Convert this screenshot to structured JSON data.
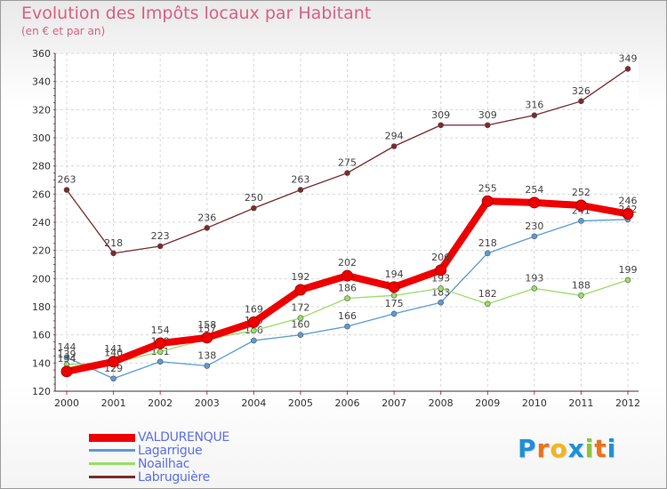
{
  "header": {
    "title": "Evolution des Impôts locaux par Habitant",
    "subtitle": "(en € et par an)"
  },
  "logo": {
    "letters": [
      "P",
      "r",
      "o",
      "x",
      "i",
      "t",
      "i"
    ],
    "colors": [
      "#1e90d8",
      "#e8731c",
      "#f2b51b",
      "#1e90d8",
      "#8cc63f",
      "#e8731c",
      "#1e90d8"
    ]
  },
  "chart_data": {
    "type": "line",
    "title": "Evolution des Impôts locaux par Habitant",
    "subtitle": "(en € et par an)",
    "xlabel": "",
    "ylabel": "",
    "x": [
      "2000",
      "2001",
      "2002",
      "2003",
      "2004",
      "2005",
      "2006",
      "2007",
      "2008",
      "2009",
      "2010",
      "2011",
      "2012"
    ],
    "ylim": [
      120,
      360
    ],
    "yticks": [
      120,
      140,
      160,
      180,
      200,
      220,
      240,
      260,
      280,
      300,
      320,
      340,
      360
    ],
    "grid": true,
    "legend_position": "bottom-left",
    "series": [
      {
        "name": "Labruguière",
        "color": "#7a2a2e",
        "values": [
          263,
          218,
          223,
          236,
          250,
          263,
          275,
          294,
          309,
          309,
          316,
          326,
          349
        ],
        "labels": [
          "263",
          "218",
          "223",
          "236",
          "250",
          "263",
          "275",
          "294",
          "309",
          "309",
          "316",
          "326",
          "349"
        ]
      },
      {
        "name": "Lagarrigue",
        "color": "#5b9bd5",
        "values": [
          144,
          129,
          141,
          138,
          156,
          160,
          166,
          175,
          183,
          218,
          230,
          241,
          242
        ],
        "labels": [
          "144",
          "129",
          "141",
          "138",
          "156",
          "160",
          "166",
          "175",
          "183",
          "218",
          "230",
          "241",
          "242"
        ]
      },
      {
        "name": "Noailhac",
        "color": "#99dd66",
        "values": [
          139,
          140,
          148,
          157,
          163,
          172,
          186,
          188,
          193,
          182,
          193,
          188,
          199
        ],
        "labels": [
          "139",
          "140",
          "148",
          "157",
          "163",
          "172",
          "186",
          "188",
          "193",
          "182",
          "193",
          "188",
          "199"
        ]
      },
      {
        "name": "VALDURENQUE",
        "color": "#ee0000",
        "values": [
          134,
          141,
          154,
          158,
          169,
          192,
          202,
          194,
          206,
          255,
          254,
          252,
          246
        ],
        "labels": [
          "134",
          "141",
          "154",
          "158",
          "169",
          "192",
          "202",
          "194",
          "206",
          "255",
          "254",
          "252",
          "246"
        ]
      }
    ],
    "legend": [
      "VALDURENQUE",
      "Lagarrigue",
      "Noailhac",
      "Labruguière"
    ]
  }
}
